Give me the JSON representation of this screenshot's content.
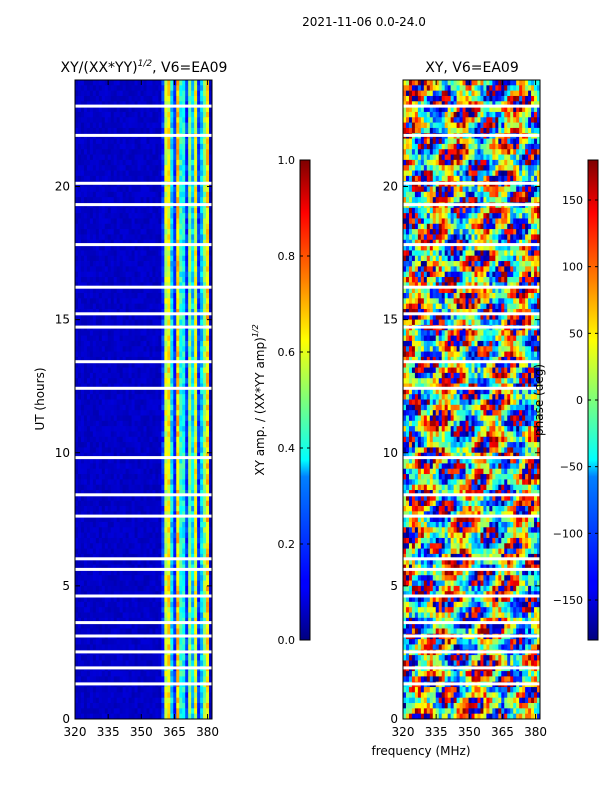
{
  "figure": {
    "suptitle": "2021-11-06 0.0-24.0",
    "shared_xlabel": "frequency (MHz)"
  },
  "chart_data": [
    {
      "type": "heatmap",
      "title_main": "XY/(XX*YY)",
      "title_exp": "1/2",
      "title_tail": ", V6=EA09",
      "xlabel": "",
      "ylabel": "UT (hours)",
      "xlim": [
        320,
        382
      ],
      "ylim": [
        0,
        24
      ],
      "xticks": [
        320,
        335,
        350,
        365,
        380
      ],
      "yticks": [
        0,
        5,
        10,
        15,
        20
      ],
      "colormap": "jet",
      "colorbar": {
        "label_main": "XY amp. / (XX*YY amp)",
        "label_exp": "1/2",
        "range": [
          0.0,
          1.0
        ],
        "ticks": [
          "0.0",
          "0.2",
          "0.4",
          "0.6",
          "0.8",
          "1.0"
        ],
        "tick_values": [
          0.0,
          0.2,
          0.4,
          0.6,
          0.8,
          1.0
        ]
      },
      "description_values": {
        "background_value": 0.05,
        "bright_band_MHz": [
          359,
          381
        ],
        "bright_band_value_range": [
          0.3,
          0.7
        ],
        "flagged_rows_approx_hours": [
          1.3,
          1.9,
          2.5,
          3.1,
          3.6,
          4.6,
          5.6,
          6.0,
          7.6,
          8.4,
          9.8,
          12.4,
          13.4,
          14.7,
          15.2,
          16.2,
          17.8,
          19.3,
          20.1,
          21.9,
          23.0
        ]
      }
    },
    {
      "type": "heatmap",
      "title_main": "XY, V6=EA09",
      "xlabel": "frequency (MHz)",
      "ylabel": "",
      "xlim": [
        320,
        382
      ],
      "ylim": [
        0,
        24
      ],
      "xticks": [
        320,
        335,
        350,
        365,
        380
      ],
      "yticks": [
        0,
        5,
        10,
        15,
        20
      ],
      "colormap": "jet",
      "colorbar": {
        "label_main": "phase (deg)",
        "range": [
          -180,
          180
        ],
        "ticks": [
          "150",
          "100",
          "50",
          "0",
          "−50",
          "−100",
          "−150"
        ],
        "tick_values": [
          150,
          100,
          50,
          0,
          -50,
          -100,
          -150
        ]
      },
      "description_values": {
        "value_range_deg": [
          -180,
          180
        ],
        "flagged_rows_approx_hours": [
          1.3,
          1.9,
          2.5,
          3.1,
          3.6,
          4.6,
          5.6,
          6.0,
          7.6,
          8.4,
          9.8,
          12.4,
          13.4,
          14.7,
          15.2,
          16.2,
          17.8,
          19.3,
          20.1,
          21.9,
          23.0
        ]
      }
    }
  ]
}
